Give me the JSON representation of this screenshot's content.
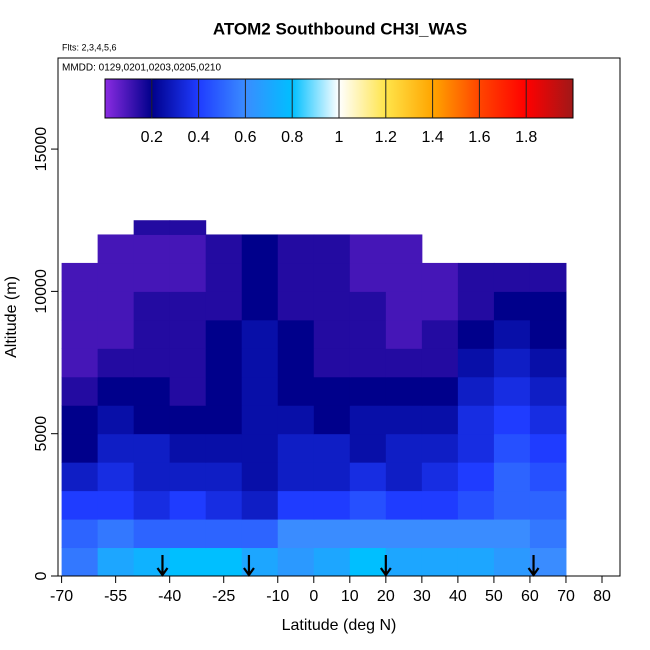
{
  "chart_data": {
    "type": "heatmap",
    "title": "ATOM2 Southbound CH3I_WAS",
    "subtitle": "Flts: 2,3,4,5,6",
    "annotation": "MMDD: 0129,0201,0203,0205,0210",
    "xlabel": "Latitude (deg N)",
    "ylabel": "Altitude (m)",
    "xlim": [
      -71,
      85
    ],
    "ylim": [
      0,
      18200
    ],
    "xticks": [
      -70,
      -55,
      -40,
      -25,
      -10,
      0,
      10,
      20,
      30,
      40,
      50,
      60,
      70,
      80
    ],
    "yticks": [
      0,
      5000,
      10000,
      15000
    ],
    "x_edges": [
      -70,
      -60,
      -50,
      -40,
      -30,
      -20,
      -10,
      0,
      10,
      20,
      30,
      40,
      50,
      60,
      70
    ],
    "y_edges": [
      0,
      1000,
      2000,
      3000,
      4000,
      5000,
      6000,
      7000,
      8000,
      9000,
      10000,
      11000,
      12000,
      12500
    ],
    "z": [
      [
        0.55,
        0.7,
        0.75,
        0.8,
        0.8,
        0.7,
        0.65,
        0.7,
        0.8,
        0.7,
        0.7,
        0.7,
        0.65,
        0.6
      ],
      [
        0.5,
        0.55,
        0.5,
        0.5,
        0.5,
        0.5,
        0.6,
        0.6,
        0.6,
        0.6,
        0.6,
        0.6,
        0.6,
        0.55
      ],
      [
        0.4,
        0.4,
        0.35,
        0.4,
        0.35,
        0.3,
        0.4,
        0.4,
        0.45,
        0.4,
        0.4,
        0.45,
        0.5,
        0.5
      ],
      [
        0.3,
        0.35,
        0.3,
        0.3,
        0.3,
        0.25,
        0.3,
        0.3,
        0.35,
        0.3,
        0.35,
        0.4,
        0.5,
        0.45
      ],
      [
        0.2,
        0.3,
        0.3,
        0.25,
        0.25,
        0.25,
        0.3,
        0.3,
        0.25,
        0.3,
        0.3,
        0.35,
        0.45,
        0.4
      ],
      [
        0.2,
        0.25,
        0.2,
        0.2,
        0.2,
        0.25,
        0.25,
        0.2,
        0.25,
        0.25,
        0.25,
        0.35,
        0.4,
        0.35
      ],
      [
        0.15,
        0.2,
        0.2,
        0.15,
        0.2,
        0.25,
        0.2,
        0.2,
        0.2,
        0.2,
        0.2,
        0.3,
        0.35,
        0.3
      ],
      [
        0.1,
        0.15,
        0.15,
        0.15,
        0.2,
        0.25,
        0.2,
        0.15,
        0.15,
        0.15,
        0.15,
        0.25,
        0.3,
        0.25
      ],
      [
        0.1,
        0.1,
        0.15,
        0.15,
        0.2,
        0.25,
        0.2,
        0.15,
        0.15,
        0.1,
        0.15,
        0.2,
        0.25,
        0.2
      ],
      [
        0.1,
        0.1,
        0.15,
        0.15,
        0.15,
        0.2,
        0.15,
        0.15,
        0.15,
        0.1,
        0.1,
        0.15,
        0.2,
        0.2
      ],
      [
        0.1,
        0.1,
        0.1,
        0.1,
        0.15,
        0.2,
        0.15,
        0.15,
        0.1,
        0.1,
        0.1,
        0.15,
        0.15,
        0.15
      ],
      [
        null,
        0.1,
        0.1,
        0.1,
        0.15,
        0.2,
        0.15,
        0.15,
        0.1,
        0.1,
        null,
        null,
        null,
        null
      ],
      [
        null,
        null,
        0.15,
        0.15,
        null,
        null,
        null,
        null,
        null,
        null,
        null,
        null,
        null,
        null
      ]
    ],
    "colorscale": [
      {
        "value": 0,
        "color": "#8a2be2"
      },
      {
        "value": 0.2,
        "color": "#00008b"
      },
      {
        "value": 0.4,
        "color": "#1f3cff"
      },
      {
        "value": 0.6,
        "color": "#3a8cff"
      },
      {
        "value": 0.8,
        "color": "#00bfff"
      },
      {
        "value": 1.0,
        "color": "#ffffff"
      },
      {
        "value": 1.2,
        "color": "#ffe44a"
      },
      {
        "value": 1.4,
        "color": "#ffa500"
      },
      {
        "value": 1.6,
        "color": "#ff4500"
      },
      {
        "value": 1.8,
        "color": "#ff0000"
      },
      {
        "value": 2.0,
        "color": "#a01818"
      }
    ],
    "colorbar_ticks": [
      0.2,
      0.4,
      0.6,
      0.8,
      1.0,
      1.2,
      1.4,
      1.6,
      1.8
    ],
    "arrow_lats": [
      -42,
      -18,
      20,
      61
    ]
  }
}
